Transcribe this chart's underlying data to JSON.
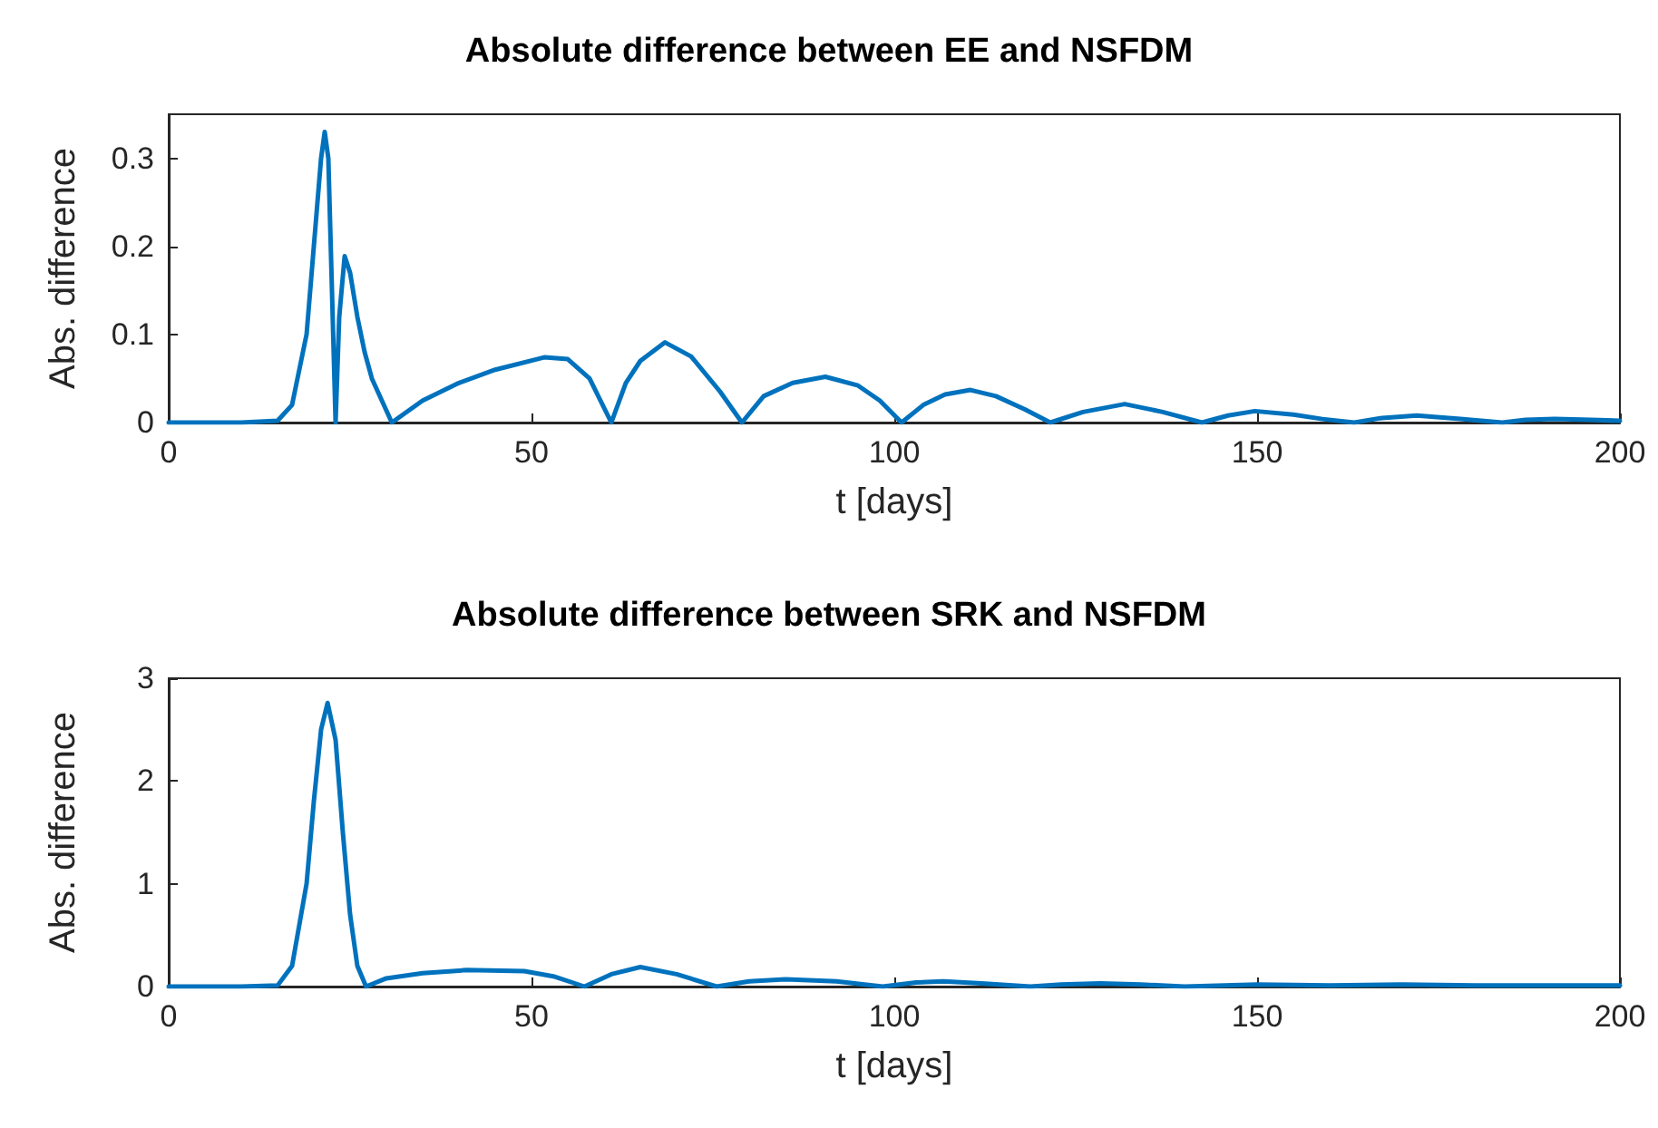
{
  "chart_data": [
    {
      "type": "line",
      "title": "Absolute difference between EE and NSFDM",
      "xlabel": "t [days]",
      "ylabel": "Abs. difference",
      "xlim": [
        0,
        200
      ],
      "xticks": [
        0,
        50,
        100,
        150,
        200
      ],
      "ylim": [
        0,
        0.35
      ],
      "yticks": [
        0,
        0.1,
        0.2,
        0.3
      ],
      "grid": false,
      "marker": "none",
      "line_style": "solid",
      "series": [
        {
          "color": "#0072bd",
          "x": [
            0,
            10,
            15,
            17,
            19,
            20,
            21,
            21.5,
            22,
            22.5,
            23,
            23.5,
            24.25,
            25,
            26,
            27,
            28,
            30.75,
            35,
            40,
            45,
            51.75,
            55,
            58,
            61,
            63,
            65,
            68.4,
            72,
            76,
            79,
            82,
            86,
            90.5,
            95,
            98,
            101,
            104,
            107,
            110.5,
            114,
            118,
            121.5,
            126,
            131.75,
            137,
            142.4,
            146,
            149.7,
            155,
            159,
            163.4,
            167,
            172,
            178,
            183.8,
            187,
            191,
            196,
            200
          ],
          "values": [
            0,
            0,
            0.002,
            0.02,
            0.1,
            0.2,
            0.3,
            0.33,
            0.3,
            0.15,
            0,
            0.12,
            0.189,
            0.17,
            0.12,
            0.08,
            0.05,
            0,
            0.025,
            0.045,
            0.06,
            0.074,
            0.072,
            0.05,
            0,
            0.045,
            0.07,
            0.091,
            0.075,
            0.035,
            0,
            0.03,
            0.045,
            0.052,
            0.042,
            0.025,
            0,
            0.02,
            0.032,
            0.037,
            0.03,
            0.015,
            0,
            0.012,
            0.021,
            0.012,
            0,
            0.008,
            0.013,
            0.009,
            0.004,
            0,
            0.005,
            0.008,
            0.004,
            0,
            0.003,
            0.004,
            0.003,
            0.002
          ]
        }
      ]
    },
    {
      "type": "line",
      "title": "Absolute difference between SRK and NSFDM",
      "xlabel": "t [days]",
      "ylabel": "Abs. difference",
      "xlim": [
        0,
        200
      ],
      "xticks": [
        0,
        50,
        100,
        150,
        200
      ],
      "ylim": [
        0,
        3
      ],
      "yticks": [
        0,
        1,
        2,
        3
      ],
      "grid": false,
      "marker": "none",
      "line_style": "solid",
      "series": [
        {
          "color": "#0072bd",
          "x": [
            0,
            10,
            15,
            17,
            19,
            20,
            21,
            21.9,
            23,
            24,
            25,
            26,
            27.2,
            30,
            35,
            41,
            49,
            53,
            57.3,
            61,
            65,
            70,
            75.5,
            80,
            85,
            92,
            98.4,
            103,
            106.75,
            112,
            118.75,
            123,
            128.4,
            134,
            140,
            150,
            160,
            170,
            180,
            190,
            200
          ],
          "values": [
            0,
            0,
            0.01,
            0.2,
            1.0,
            1.8,
            2.5,
            2.76,
            2.4,
            1.5,
            0.7,
            0.2,
            0,
            0.08,
            0.13,
            0.16,
            0.15,
            0.1,
            0,
            0.12,
            0.19,
            0.12,
            0,
            0.05,
            0.07,
            0.05,
            0,
            0.04,
            0.05,
            0.03,
            0,
            0.02,
            0.03,
            0.02,
            0,
            0.02,
            0.01,
            0.02,
            0.01,
            0.01,
            0.01
          ]
        }
      ]
    }
  ]
}
